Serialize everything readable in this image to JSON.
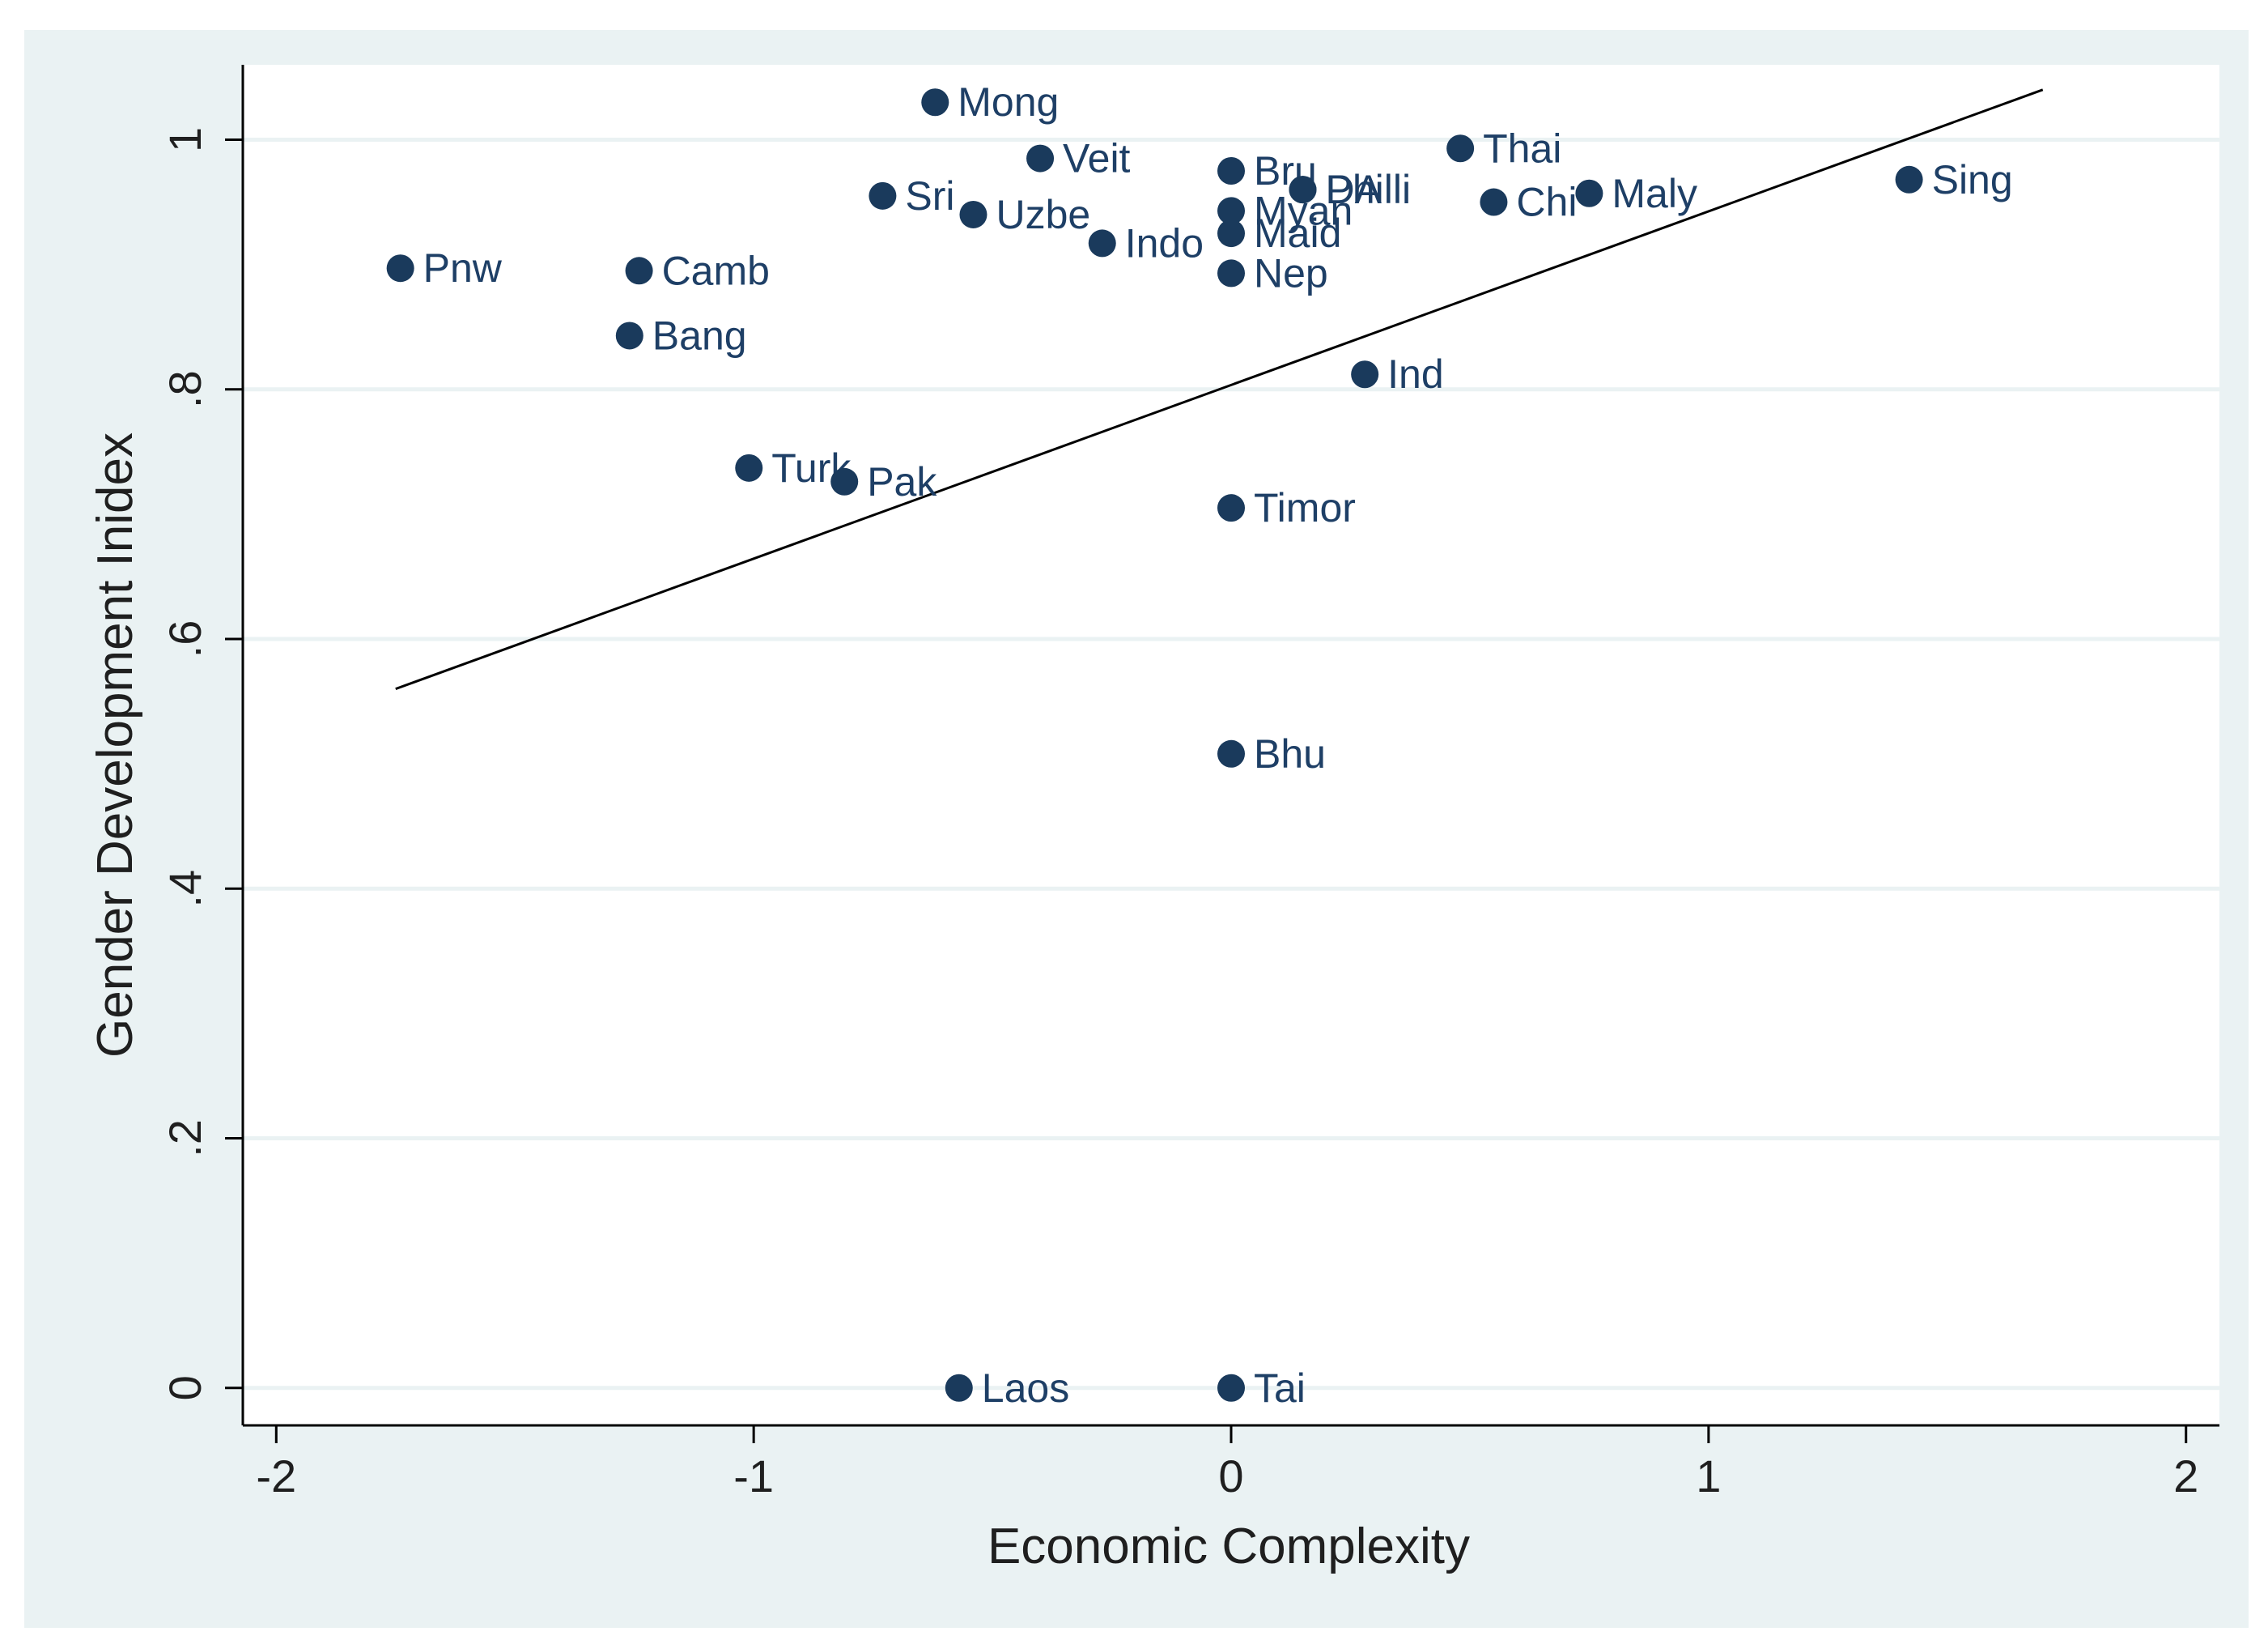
{
  "chart_data": {
    "type": "scatter",
    "title": "",
    "xlabel": "Economic Complexity",
    "ylabel": "Gender Development Inidex",
    "xlim": [
      -2.07,
      2.07
    ],
    "ylim": [
      -0.03,
      1.06
    ],
    "xticks": [
      -2,
      -1,
      0,
      1,
      2
    ],
    "xtick_labels": [
      "-2",
      "-1",
      "0",
      "1",
      "2"
    ],
    "yticks": [
      0,
      0.2,
      0.4,
      0.6,
      0.8,
      1
    ],
    "ytick_labels": [
      "0",
      ".2",
      ".4",
      ".6",
      ".8",
      "1"
    ],
    "grid": "horizontal",
    "colors": {
      "outer_background": "#eaf2f3",
      "plot_background": "#ffffff",
      "grid": "#eaf2f3",
      "marker": "#1a3a5c",
      "label": "#1e3f66",
      "fit_line": "#000000",
      "axis": "#000000"
    },
    "points": [
      {
        "label": "Mong",
        "x": -0.62,
        "y": 1.03
      },
      {
        "label": "Veit",
        "x": -0.4,
        "y": 0.985
      },
      {
        "label": "Thai",
        "x": 0.48,
        "y": 0.993
      },
      {
        "label": "Bru",
        "x": 0.0,
        "y": 0.975
      },
      {
        "label": "DA",
        "x": 0.15,
        "y": 0.96
      },
      {
        "label": "Philli",
        "x": 0.15,
        "y": 0.96
      },
      {
        "label": "Sri",
        "x": -0.73,
        "y": 0.955
      },
      {
        "label": "Uzbe",
        "x": -0.54,
        "y": 0.94
      },
      {
        "label": "Myan",
        "x": 0.0,
        "y": 0.943
      },
      {
        "label": "Chi",
        "x": 0.55,
        "y": 0.95
      },
      {
        "label": "Maly",
        "x": 0.75,
        "y": 0.957
      },
      {
        "label": "Sing",
        "x": 1.42,
        "y": 0.968
      },
      {
        "label": "Maid",
        "x": 0.0,
        "y": 0.925
      },
      {
        "label": "Indo",
        "x": -0.27,
        "y": 0.917
      },
      {
        "label": "Pnw",
        "x": -1.74,
        "y": 0.897
      },
      {
        "label": "Camb",
        "x": -1.24,
        "y": 0.895
      },
      {
        "label": "Nep",
        "x": 0.0,
        "y": 0.893
      },
      {
        "label": "Bang",
        "x": -1.26,
        "y": 0.843
      },
      {
        "label": "Ind",
        "x": 0.28,
        "y": 0.812
      },
      {
        "label": "Turk",
        "x": -1.01,
        "y": 0.737
      },
      {
        "label": "Pak",
        "x": -0.81,
        "y": 0.726
      },
      {
        "label": "Timor",
        "x": 0.0,
        "y": 0.705
      },
      {
        "label": "Bhu",
        "x": 0.0,
        "y": 0.508
      },
      {
        "label": "Laos",
        "x": -0.57,
        "y": 0.0
      },
      {
        "label": "Tai",
        "x": 0.0,
        "y": 0.0
      }
    ],
    "fit_line": {
      "x": [
        -1.75,
        1.7
      ],
      "y": [
        0.56,
        1.04
      ]
    }
  }
}
